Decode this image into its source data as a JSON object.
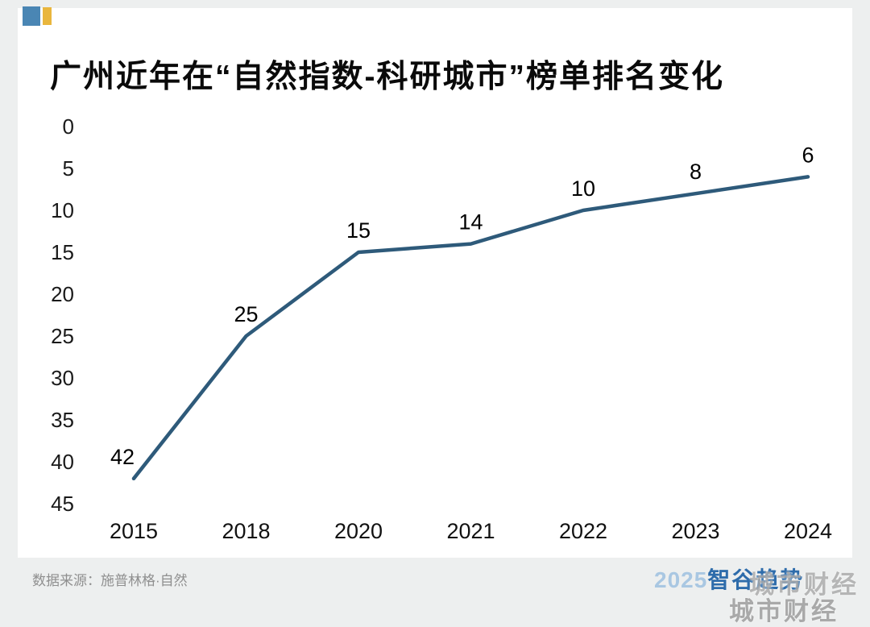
{
  "chart_data": {
    "type": "line",
    "title": "广州近年在“自然指数-科研城市”榜单排名变化",
    "categories": [
      "2015",
      "2018",
      "2020",
      "2021",
      "2022",
      "2023",
      "2024"
    ],
    "values": [
      42,
      25,
      15,
      14,
      10,
      8,
      6
    ],
    "ylabel": "",
    "xlabel": "",
    "ylim": [
      0,
      45
    ],
    "y_inverted": true,
    "y_ticks": [
      0,
      5,
      10,
      15,
      20,
      25,
      30,
      35,
      40,
      45
    ],
    "grid": false,
    "legend": "none",
    "line_color": "#2e5a7a",
    "tick_color": "#1a1a1a",
    "value_label_color": "#000000"
  },
  "logo": {
    "name": "brand-squares-icon",
    "blue": "#4a86b4",
    "gold": "#e9b63d"
  },
  "footer": {
    "source": "数据来源：施普林格·自然",
    "brand_year": "2025",
    "brand_name": "智谷趋势",
    "watermark": "城市财经"
  }
}
